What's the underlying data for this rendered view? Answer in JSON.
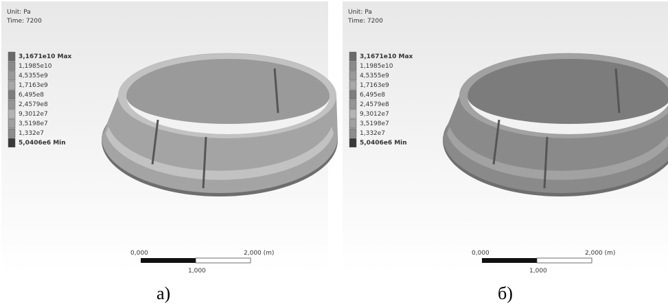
{
  "panels": [
    {
      "unit": "Unit: Pa",
      "time": "Time: 7200",
      "legend": [
        "3,1671e10 Max",
        "1,1985e10",
        "4,5355e9",
        "1,7163e9",
        "6,495e8",
        "2,4579e8",
        "9,3012e7",
        "3,5198e7",
        "1,332e7",
        "5,0406e6 Min"
      ],
      "scale": {
        "start": "0,000",
        "middle": "1,000",
        "end": "2,000 (m)"
      },
      "caption": "а)"
    },
    {
      "unit": "Unit: Pa",
      "time": "Time: 7200",
      "legend": [
        "3,1671e10 Max",
        "1,1985e10",
        "4,5355e9",
        "1,7163e9",
        "6,495e8",
        "2,4579e8",
        "9,3012e7",
        "3,5198e7",
        "1,332e7",
        "5,0406e6 Min"
      ],
      "scale": {
        "start": "0,000",
        "middle": "1,000",
        "end": "2,000 (m)"
      },
      "caption": "б)"
    }
  ]
}
